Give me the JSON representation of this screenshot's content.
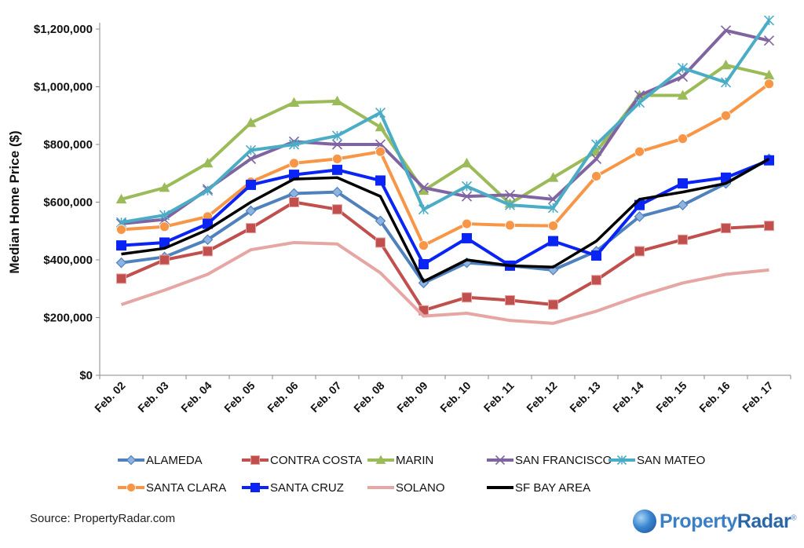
{
  "chart_data": {
    "type": "line",
    "title": "",
    "xlabel": "",
    "ylabel": "Median Home Price ($)",
    "ylim": [
      0,
      1200000
    ],
    "y_ticks": [
      0,
      200000,
      400000,
      600000,
      800000,
      1000000,
      1200000
    ],
    "y_tick_labels": [
      "$0",
      "$200,000",
      "$400,000",
      "$600,000",
      "$800,000",
      "$1,000,000",
      "$1,200,000"
    ],
    "grid": false,
    "legend_position": "bottom",
    "categories": [
      "Feb. 02",
      "Feb. 03",
      "Feb. 04",
      "Feb. 05",
      "Feb. 06",
      "Feb. 07",
      "Feb. 08",
      "Feb. 09",
      "Feb. 10",
      "Feb. 11",
      "Feb. 12",
      "Feb. 13",
      "Feb. 14",
      "Feb. 15",
      "Feb. 16",
      "Feb. 17"
    ],
    "series": [
      {
        "name": "ALAMEDA",
        "color": "#4f81bd",
        "marker": "diamond",
        "values": [
          390000,
          410000,
          470000,
          570000,
          630000,
          635000,
          535000,
          320000,
          390000,
          380000,
          365000,
          430000,
          550000,
          590000,
          665000,
          750000
        ]
      },
      {
        "name": "CONTRA COSTA",
        "color": "#c0504d",
        "marker": "square",
        "values": [
          335000,
          400000,
          430000,
          510000,
          600000,
          575000,
          460000,
          225000,
          270000,
          260000,
          245000,
          330000,
          430000,
          470000,
          510000,
          518000
        ]
      },
      {
        "name": "MARIN",
        "color": "#9bbb59",
        "marker": "triangle",
        "values": [
          610000,
          650000,
          735000,
          875000,
          945000,
          950000,
          860000,
          640000,
          735000,
          595000,
          685000,
          775000,
          970000,
          970000,
          1075000,
          1040000
        ]
      },
      {
        "name": "SAN FRANCISCO",
        "color": "#8064a2",
        "marker": "x",
        "values": [
          525000,
          540000,
          645000,
          750000,
          810000,
          800000,
          800000,
          650000,
          620000,
          625000,
          610000,
          750000,
          970000,
          1035000,
          1195000,
          1160000
        ]
      },
      {
        "name": "SAN MATEO",
        "color": "#4bacc6",
        "marker": "asterisk",
        "values": [
          530000,
          555000,
          640000,
          780000,
          800000,
          830000,
          910000,
          575000,
          655000,
          590000,
          580000,
          800000,
          945000,
          1065000,
          1015000,
          1230000
        ]
      },
      {
        "name": "SANTA CLARA",
        "color": "#f79646",
        "marker": "circle",
        "values": [
          505000,
          515000,
          550000,
          670000,
          735000,
          750000,
          775000,
          450000,
          525000,
          520000,
          518000,
          690000,
          775000,
          820000,
          900000,
          1010000
        ]
      },
      {
        "name": "SANTA CRUZ",
        "color": "#0a24f5",
        "marker": "square",
        "values": [
          450000,
          460000,
          525000,
          660000,
          695000,
          712000,
          675000,
          385000,
          475000,
          380000,
          465000,
          415000,
          590000,
          665000,
          685000,
          745000
        ]
      },
      {
        "name": "SOLANO",
        "color": "#e6a6a4",
        "marker": "none",
        "values": [
          245000,
          295000,
          350000,
          435000,
          460000,
          455000,
          355000,
          205000,
          215000,
          190000,
          180000,
          222000,
          275000,
          320000,
          350000,
          365000
        ]
      },
      {
        "name": "SF BAY AREA",
        "color": "#000000",
        "marker": "none",
        "values": [
          420000,
          440000,
          505000,
          600000,
          680000,
          685000,
          620000,
          325000,
          400000,
          380000,
          375000,
          465000,
          610000,
          635000,
          665000,
          750000
        ]
      }
    ]
  },
  "footer": {
    "source": "Source: PropertyRadar.com",
    "logo_part1": "Property",
    "logo_part2": "Radar",
    "logo_mark": "®"
  }
}
